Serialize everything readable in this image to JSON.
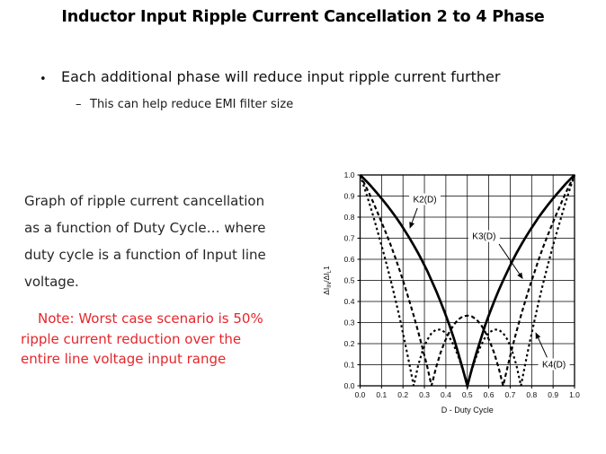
{
  "title": "Inductor Input Ripple Current Cancellation 2 to 4 Phase",
  "bullet": {
    "marker": "•",
    "text": "Each additional phase will reduce input ripple current further"
  },
  "sub_bullet": {
    "marker": "–",
    "text": "This can help reduce EMI filter size"
  },
  "description": "Graph of ripple current cancellation\nas a function of Duty Cycle… where\nduty cycle is a function of Input line\nvoltage.",
  "note": {
    "text": "Note: Worst case scenario is 50%\nripple current reduction over the\nentire line voltage input range",
    "color": "#e5262b"
  },
  "chart_data": {
    "type": "line",
    "title": "",
    "xlabel": "D - Duty Cycle",
    "ylabel": "ΔI_IN/ΔI_L1",
    "ylabel_parts": [
      {
        "t": "ΔI"
      },
      {
        "t": "IN",
        "sub": true
      },
      {
        "t": "/ΔI"
      },
      {
        "t": "L",
        "sub": true
      },
      {
        "t": "1"
      }
    ],
    "xlim": [
      0,
      1
    ],
    "ylim": [
      0,
      1
    ],
    "grid": true,
    "line_color": "#000000",
    "xticks": [
      "0.0",
      "0.1",
      "0.2",
      "0.3",
      "0.4",
      "0.5",
      "0.6",
      "0.7",
      "0.8",
      "0.9",
      "1.0"
    ],
    "yticks": [
      "0.0",
      "0.1",
      "0.2",
      "0.3",
      "0.4",
      "0.5",
      "0.6",
      "0.7",
      "0.8",
      "0.9",
      "1.0"
    ],
    "x": [
      0,
      0.021,
      0.042,
      0.063,
      0.083,
      0.104,
      0.125,
      0.146,
      0.167,
      0.188,
      0.208,
      0.229,
      0.25,
      0.271,
      0.292,
      0.313,
      0.333,
      0.354,
      0.375,
      0.396,
      0.417,
      0.438,
      0.458,
      0.479,
      0.5,
      0.521,
      0.542,
      0.563,
      0.583,
      0.604,
      0.625,
      0.646,
      0.667,
      0.688,
      0.708,
      0.729,
      0.75,
      0.771,
      0.792,
      0.813,
      0.833,
      0.854,
      0.875,
      0.896,
      0.917,
      0.938,
      0.958,
      0.979,
      1
    ],
    "series": [
      {
        "name": "K2(D)",
        "style": "solid",
        "values": [
          1,
          0.979,
          0.957,
          0.933,
          0.909,
          0.884,
          0.857,
          0.829,
          0.8,
          0.769,
          0.737,
          0.703,
          0.667,
          0.629,
          0.588,
          0.545,
          0.5,
          0.452,
          0.4,
          0.345,
          0.286,
          0.222,
          0.154,
          0.08,
          0,
          0.08,
          0.154,
          0.222,
          0.286,
          0.345,
          0.4,
          0.452,
          0.5,
          0.545,
          0.588,
          0.629,
          0.667,
          0.703,
          0.737,
          0.769,
          0.8,
          0.829,
          0.857,
          0.884,
          0.909,
          0.933,
          0.957,
          0.979,
          1
        ]
      },
      {
        "name": "K3(D)",
        "style": "dashed",
        "values": [
          1,
          0.957,
          0.913,
          0.867,
          0.818,
          0.767,
          0.714,
          0.659,
          0.6,
          0.538,
          0.474,
          0.405,
          0.333,
          0.257,
          0.176,
          0.091,
          0,
          0.085,
          0.156,
          0.212,
          0.257,
          0.291,
          0.315,
          0.329,
          0.333,
          0.329,
          0.315,
          0.291,
          0.257,
          0.212,
          0.156,
          0.085,
          0,
          0.091,
          0.176,
          0.257,
          0.333,
          0.405,
          0.474,
          0.538,
          0.6,
          0.659,
          0.714,
          0.767,
          0.818,
          0.867,
          0.913,
          0.957,
          1
        ]
      },
      {
        "name": "K4(D)",
        "style": "dotted",
        "values": [
          1,
          0.936,
          0.87,
          0.8,
          0.727,
          0.651,
          0.571,
          0.488,
          0.4,
          0.308,
          0.211,
          0.108,
          0,
          0.097,
          0.168,
          0.218,
          0.25,
          0.266,
          0.267,
          0.254,
          0.229,
          0.19,
          0.14,
          0.076,
          0,
          0.076,
          0.14,
          0.19,
          0.229,
          0.254,
          0.267,
          0.266,
          0.25,
          0.218,
          0.168,
          0.097,
          0,
          0.108,
          0.211,
          0.308,
          0.4,
          0.488,
          0.571,
          0.651,
          0.727,
          0.8,
          0.87,
          0.936,
          1
        ]
      }
    ],
    "annotations": [
      {
        "label": "K2(D)",
        "label_at": [
          0.302,
          0.885
        ],
        "arrow_from": [
          0.267,
          0.843
        ],
        "arrow_to": [
          0.233,
          0.75
        ]
      },
      {
        "label": "K3(D)",
        "label_at": [
          0.578,
          0.71
        ],
        "arrow_from": [
          0.648,
          0.672
        ],
        "arrow_to": [
          0.757,
          0.51
        ]
      },
      {
        "label": "K4(D)",
        "label_at": [
          0.904,
          0.102
        ],
        "arrow_from": [
          0.872,
          0.135
        ],
        "arrow_to": [
          0.82,
          0.25
        ]
      }
    ]
  }
}
